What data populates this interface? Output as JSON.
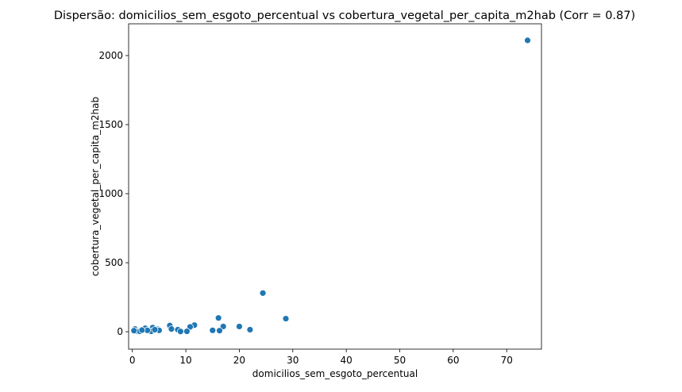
{
  "chart_data": {
    "type": "scatter",
    "title": "Dispersão: domicilios_sem_esgoto_percentual vs cobertura_vegetal_per_capita_m2hab (Corr = 0.87)",
    "x_label": "domicilios_sem_esgoto_percentual",
    "y_label": "cobertura_vegetal_per_capita_m2hab",
    "color": "#1f77b4",
    "x": [
      73.9,
      24.4,
      28.7,
      16.1,
      11.6,
      7.0,
      20.0,
      17.0,
      10.8,
      3.8,
      2.4,
      0.5,
      4.8,
      7.3,
      8.5,
      22.0,
      15.0,
      16.3,
      0.8,
      1.4,
      3.5,
      9.0,
      10.2,
      0.3,
      5.0,
      2.8,
      4.2,
      1.8
    ],
    "y": [
      2110,
      280,
      95,
      100,
      48,
      45,
      38,
      38,
      35,
      30,
      25,
      20,
      18,
      20,
      15,
      15,
      10,
      8,
      5,
      3,
      3,
      2,
      3,
      8,
      10,
      10,
      15,
      12
    ],
    "xlim": [
      -0.7,
      76.5
    ],
    "ylim": [
      -126,
      2230
    ],
    "xticks": [
      0,
      10,
      20,
      30,
      40,
      50,
      60,
      70
    ],
    "yticks": [
      0,
      500,
      1000,
      1500,
      2000
    ]
  }
}
